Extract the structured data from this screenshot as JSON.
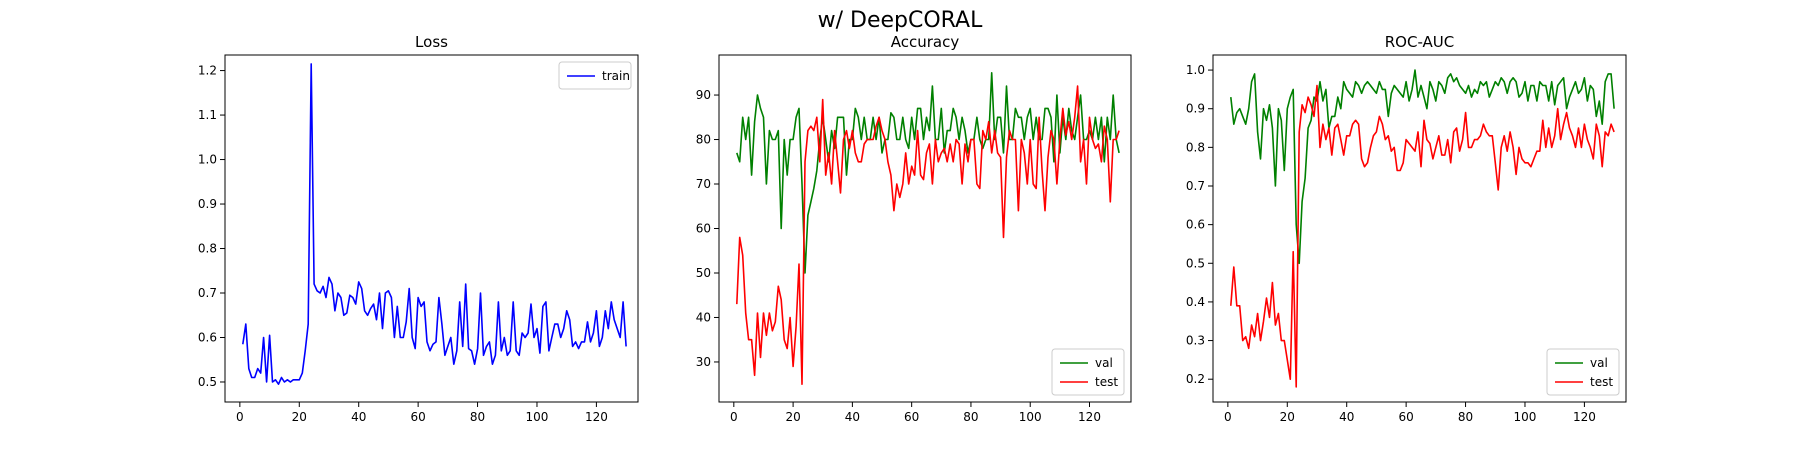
{
  "figure": {
    "title": "w/ DeepCORAL"
  },
  "chart_data": [
    {
      "type": "line",
      "title": "Loss",
      "xlim": [
        -5,
        134
      ],
      "ylim": [
        0.455,
        1.235
      ],
      "xticks": [
        0,
        20,
        40,
        60,
        80,
        100,
        120
      ],
      "yticks": [
        0.5,
        0.6,
        0.7,
        0.8,
        0.9,
        1.0,
        1.1,
        1.2
      ],
      "ytick_labels": [
        "0.5",
        "0.6",
        "0.7",
        "0.8",
        "0.9",
        "1.0",
        "1.1",
        "1.2"
      ],
      "legend": "top-right",
      "grid": false,
      "series": [
        {
          "name": "train",
          "color": "#0000ff",
          "x_start": 1,
          "values": [
            0.585,
            0.63,
            0.53,
            0.51,
            0.51,
            0.53,
            0.52,
            0.6,
            0.5,
            0.605,
            0.5,
            0.505,
            0.495,
            0.51,
            0.5,
            0.505,
            0.5,
            0.505,
            0.505,
            0.505,
            0.52,
            0.57,
            0.63,
            1.215,
            0.72,
            0.705,
            0.7,
            0.715,
            0.69,
            0.735,
            0.72,
            0.66,
            0.7,
            0.69,
            0.65,
            0.655,
            0.695,
            0.69,
            0.675,
            0.725,
            0.71,
            0.66,
            0.65,
            0.665,
            0.675,
            0.64,
            0.7,
            0.62,
            0.7,
            0.705,
            0.69,
            0.6,
            0.67,
            0.6,
            0.6,
            0.635,
            0.71,
            0.6,
            0.575,
            0.69,
            0.67,
            0.68,
            0.59,
            0.57,
            0.585,
            0.59,
            0.69,
            0.63,
            0.56,
            0.58,
            0.6,
            0.54,
            0.57,
            0.68,
            0.58,
            0.72,
            0.575,
            0.57,
            0.54,
            0.575,
            0.7,
            0.56,
            0.58,
            0.59,
            0.54,
            0.56,
            0.68,
            0.57,
            0.6,
            0.56,
            0.57,
            0.68,
            0.57,
            0.56,
            0.61,
            0.6,
            0.61,
            0.675,
            0.6,
            0.62,
            0.565,
            0.67,
            0.68,
            0.57,
            0.6,
            0.63,
            0.63,
            0.6,
            0.62,
            0.66,
            0.64,
            0.58,
            0.59,
            0.575,
            0.59,
            0.59,
            0.635,
            0.59,
            0.61,
            0.66,
            0.58,
            0.6,
            0.66,
            0.62,
            0.68,
            0.64,
            0.62,
            0.6,
            0.68,
            0.58
          ]
        }
      ]
    },
    {
      "type": "line",
      "title": "Accuracy",
      "xlim": [
        -5,
        134
      ],
      "ylim": [
        21,
        99
      ],
      "xticks": [
        0,
        20,
        40,
        60,
        80,
        100,
        120
      ],
      "yticks": [
        30,
        40,
        50,
        60,
        70,
        80,
        90
      ],
      "ytick_labels": [
        "30",
        "40",
        "50",
        "60",
        "70",
        "80",
        "90"
      ],
      "legend": "bottom-right",
      "grid": false,
      "series": [
        {
          "name": "val",
          "color": "#008000",
          "x_start": 1,
          "values": [
            77,
            75,
            85,
            80,
            85,
            72,
            84,
            90,
            87,
            85,
            70,
            82,
            80,
            80,
            82,
            60,
            80,
            72,
            80,
            80,
            85,
            87,
            70,
            50,
            63,
            66,
            69,
            73,
            80,
            85,
            80,
            75,
            82,
            78,
            85,
            85,
            85,
            72,
            80,
            80,
            87,
            85,
            80,
            85,
            80,
            80,
            85,
            80,
            85,
            77,
            80,
            80,
            86,
            85,
            80,
            80,
            85,
            80,
            78,
            85,
            80,
            87,
            87,
            80,
            85,
            82,
            92,
            80,
            80,
            87,
            77,
            82,
            82,
            87,
            85,
            80,
            85,
            82,
            77,
            80,
            80,
            85,
            80,
            78,
            80,
            80,
            95,
            80,
            85,
            85,
            77,
            92,
            80,
            80,
            87,
            85,
            85,
            80,
            85,
            87,
            80,
            85,
            80,
            80,
            87,
            87,
            85,
            75,
            90,
            77,
            85,
            80,
            87,
            82,
            80,
            85,
            90,
            80,
            80,
            82,
            80,
            85,
            80,
            85,
            75,
            85,
            80,
            90,
            80,
            77
          ]
        },
        {
          "name": "test",
          "color": "#ff0000",
          "x_start": 1,
          "values": [
            43,
            58,
            54,
            41,
            35,
            35,
            27,
            41,
            31,
            41,
            36,
            41,
            37,
            39,
            47,
            44,
            35,
            33,
            40,
            29,
            38,
            52,
            25,
            75,
            82,
            83,
            82,
            85,
            75,
            89,
            72,
            77,
            70,
            82,
            75,
            68,
            80,
            82,
            78,
            82,
            77,
            75,
            75,
            79,
            80,
            80,
            80,
            83,
            85,
            82,
            80,
            75,
            72,
            64,
            70,
            67,
            70,
            77,
            70,
            74,
            72,
            82,
            72,
            71,
            77,
            79,
            70,
            80,
            75,
            77,
            78,
            75,
            79,
            75,
            80,
            79,
            70,
            79,
            75,
            80,
            80,
            70,
            69,
            82,
            80,
            84,
            77,
            82,
            77,
            76,
            58,
            76,
            82,
            80,
            80,
            64,
            80,
            77,
            70,
            80,
            70,
            69,
            85,
            73,
            64,
            76,
            82,
            80,
            70,
            80,
            87,
            81,
            84,
            80,
            85,
            92,
            75,
            80,
            70,
            85,
            80,
            78,
            79,
            75,
            83,
            80,
            66,
            80,
            80,
            82
          ]
        }
      ]
    },
    {
      "type": "line",
      "title": "ROC-AUC",
      "xlim": [
        -5,
        134
      ],
      "ylim": [
        0.141,
        1.039
      ],
      "xticks": [
        0,
        20,
        40,
        60,
        80,
        100,
        120
      ],
      "yticks": [
        0.2,
        0.3,
        0.4,
        0.5,
        0.6,
        0.7,
        0.8,
        0.9,
        1.0
      ],
      "ytick_labels": [
        "0.2",
        "0.3",
        "0.4",
        "0.5",
        "0.6",
        "0.7",
        "0.8",
        "0.9",
        "1.0"
      ],
      "legend": "bottom-right",
      "grid": false,
      "series": [
        {
          "name": "val",
          "color": "#008000",
          "x_start": 1,
          "values": [
            0.93,
            0.86,
            0.89,
            0.9,
            0.88,
            0.86,
            0.9,
            0.97,
            0.99,
            0.84,
            0.77,
            0.9,
            0.87,
            0.91,
            0.85,
            0.7,
            0.9,
            0.87,
            0.74,
            0.9,
            0.93,
            0.95,
            0.6,
            0.5,
            0.66,
            0.72,
            0.85,
            0.87,
            0.93,
            0.92,
            0.97,
            0.92,
            0.95,
            0.85,
            0.88,
            0.88,
            0.93,
            0.9,
            0.97,
            0.95,
            0.94,
            0.93,
            0.97,
            0.96,
            0.94,
            0.96,
            0.97,
            0.96,
            0.95,
            0.94,
            0.97,
            0.95,
            0.95,
            0.88,
            0.94,
            0.96,
            0.95,
            0.94,
            0.93,
            0.97,
            0.92,
            0.95,
            1.0,
            0.93,
            0.96,
            0.93,
            0.9,
            0.97,
            0.95,
            0.92,
            0.97,
            0.96,
            0.94,
            0.98,
            0.99,
            0.97,
            0.98,
            0.96,
            0.95,
            0.94,
            0.96,
            0.93,
            0.95,
            0.94,
            0.97,
            0.96,
            0.97,
            0.93,
            0.95,
            0.97,
            0.96,
            0.98,
            0.97,
            0.94,
            0.97,
            0.98,
            0.97,
            0.93,
            0.94,
            0.97,
            0.92,
            0.96,
            0.96,
            0.92,
            0.97,
            0.96,
            0.96,
            0.92,
            0.97,
            0.91,
            0.96,
            0.97,
            0.98,
            0.9,
            0.93,
            0.95,
            0.97,
            0.94,
            0.95,
            0.98,
            0.92,
            0.96,
            0.95,
            0.88,
            0.92,
            0.86,
            0.97,
            0.99,
            0.99,
            0.9
          ]
        },
        {
          "name": "test",
          "color": "#ff0000",
          "x_start": 1,
          "values": [
            0.39,
            0.49,
            0.39,
            0.39,
            0.3,
            0.31,
            0.28,
            0.34,
            0.31,
            0.37,
            0.3,
            0.35,
            0.41,
            0.36,
            0.45,
            0.34,
            0.37,
            0.3,
            0.3,
            0.25,
            0.2,
            0.53,
            0.18,
            0.84,
            0.91,
            0.89,
            0.93,
            0.91,
            0.88,
            0.96,
            0.8,
            0.86,
            0.82,
            0.85,
            0.78,
            0.85,
            0.86,
            0.82,
            0.78,
            0.83,
            0.83,
            0.86,
            0.87,
            0.86,
            0.77,
            0.75,
            0.76,
            0.8,
            0.83,
            0.84,
            0.88,
            0.86,
            0.82,
            0.83,
            0.79,
            0.8,
            0.74,
            0.74,
            0.76,
            0.82,
            0.81,
            0.8,
            0.79,
            0.84,
            0.75,
            0.87,
            0.82,
            0.81,
            0.77,
            0.8,
            0.83,
            0.78,
            0.78,
            0.82,
            0.76,
            0.84,
            0.85,
            0.79,
            0.82,
            0.89,
            0.8,
            0.8,
            0.82,
            0.82,
            0.83,
            0.86,
            0.84,
            0.83,
            0.83,
            0.76,
            0.69,
            0.8,
            0.83,
            0.79,
            0.84,
            0.8,
            0.73,
            0.8,
            0.77,
            0.76,
            0.76,
            0.75,
            0.77,
            0.79,
            0.79,
            0.87,
            0.8,
            0.85,
            0.8,
            0.83,
            0.9,
            0.82,
            0.86,
            0.89,
            0.85,
            0.83,
            0.8,
            0.85,
            0.8,
            0.86,
            0.82,
            0.8,
            0.77,
            0.86,
            0.83,
            0.75,
            0.84,
            0.83,
            0.86,
            0.84
          ]
        }
      ]
    }
  ]
}
